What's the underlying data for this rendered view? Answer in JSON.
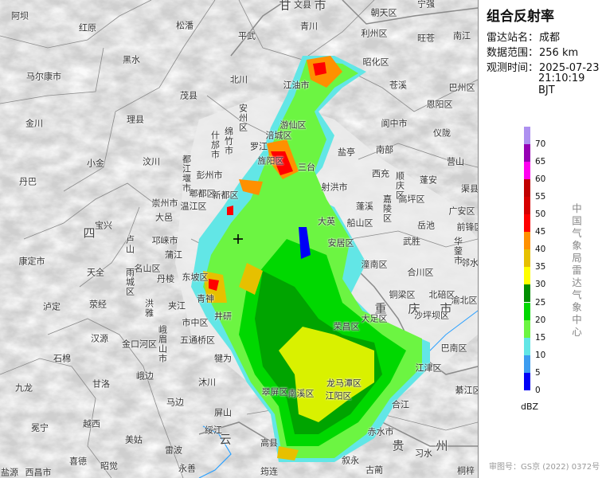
{
  "panel": {
    "title": "组合反射率",
    "station_label": "雷达站名：",
    "station": "成都",
    "range_label": "数据范围：",
    "range": "256 km",
    "time_label": "观测时间：",
    "date": "2025-07-23",
    "time": "21:10:19 BJT",
    "unit": "dBZ",
    "agency": "中国气象局雷达气象中心",
    "approval": "审图号：GS京 (2022) 0372号"
  },
  "legend": {
    "ticks": [
      "0",
      "5",
      "10",
      "15",
      "20",
      "25",
      "30",
      "35",
      "40",
      "45",
      "50",
      "55",
      "60",
      "65",
      "70"
    ],
    "colors": [
      "#0000f6",
      "#3c9cf0",
      "#62e6e6",
      "#6cf542",
      "#00d800",
      "#008e00",
      "#ffff00",
      "#e6c000",
      "#ff9000",
      "#ff0000",
      "#d60000",
      "#c00000",
      "#ff00f0",
      "#9600b4",
      "#ad90f0"
    ]
  },
  "map": {
    "radar_marker": "radar-center-cross",
    "labels": [
      "阿坝",
      "红原",
      "松潘",
      "甘",
      "文县",
      "市",
      "宁强",
      "朝天区",
      "青川",
      "平武",
      "利州区",
      "旺苍",
      "南江",
      "黑水",
      "马尔康市",
      "北川",
      "茂县",
      "昭化区",
      "江油市",
      "苍溪",
      "巴州区",
      "金川",
      "理县",
      "恩阳区",
      "阆中市",
      "仪陇",
      "游仙区",
      "涪城区",
      "罗江",
      "盐亭",
      "南部",
      "营山",
      "小金",
      "汶川",
      "彭州市",
      "旌阳区",
      "三台",
      "西充",
      "蓬安",
      "丹巴",
      "郫都区",
      "新都区",
      "射洪市",
      "渠县",
      "高坪区",
      "崇州市",
      "温江区",
      "大邑",
      "广安区",
      "蓬溪",
      "宝兴",
      "大英",
      "船山区",
      "岳池",
      "前锋区",
      "四",
      "安居区",
      "武胜",
      "邻水",
      "康定市",
      "邛崃市",
      "蒲江",
      "名山区",
      "潼南区",
      "合川区",
      "天全",
      "东坡区",
      "丹棱",
      "青神",
      "夹江",
      "泸定",
      "荥经",
      "铜梁区",
      "北碚区",
      "渝北区",
      "重",
      "庆",
      "市",
      "大足区",
      "井研",
      "市中区",
      "汉源",
      "荣昌区",
      "九龙",
      "石棉",
      "五通桥区",
      "巴南区",
      "犍为",
      "江津区",
      "沐川",
      "甘洛",
      "峨边",
      "马边",
      "綦江区",
      "翠屏区",
      "南溪区",
      "江阳区",
      "龙马潭区",
      "合江",
      "屏山",
      "冕宁",
      "越西",
      "绥江",
      "美姑",
      "赤水市",
      "高县",
      "雷波",
      "贵",
      "州",
      "习水",
      "喜德",
      "昭觉",
      "叙永",
      "永善",
      "古蔺",
      "盐源",
      "西昌市",
      "筠连",
      "桐梓",
      "安州区",
      "什邡市",
      "绵竹市",
      "都江堰市",
      "顺庆区",
      "嘉陵区",
      "华蓥市",
      "卢山",
      "雨城区",
      "洪雅",
      "峨眉山市",
      "金口河区",
      "沙坪坝区",
      "云"
    ]
  }
}
